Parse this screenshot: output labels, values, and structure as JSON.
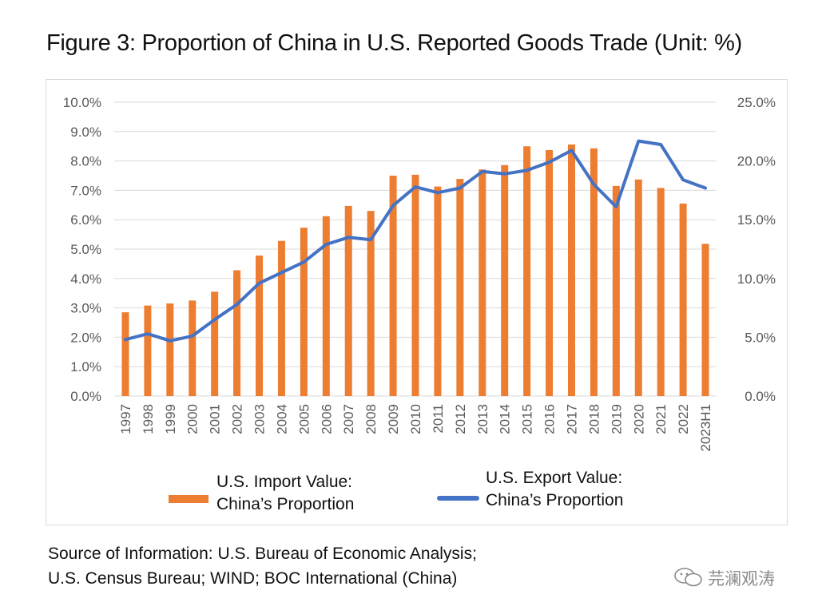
{
  "title": "Figure 3: Proportion of China in U.S. Reported Goods Trade (Unit: %)",
  "legend": {
    "import_line1": "U.S. Import Value:",
    "import_line2": "China’s Proportion",
    "export_line1": "U.S. Export Value:",
    "export_line2": "China’s Proportion"
  },
  "source": {
    "line1": "Source of Information: U.S. Bureau of Economic Analysis;",
    "line2": "U.S. Census Bureau; WIND; BOC International (China)"
  },
  "watermark": "芫澜观涛",
  "colors": {
    "bars": "#ed7d31",
    "line": "#4472c4",
    "grid": "#d9d9d9",
    "tick_text": "#595959"
  },
  "chart_data": {
    "type": "bar",
    "categories": [
      "1997",
      "1998",
      "1999",
      "2000",
      "2001",
      "2002",
      "2003",
      "2004",
      "2005",
      "2006",
      "2007",
      "2008",
      "2009",
      "2010",
      "2011",
      "2012",
      "2013",
      "2014",
      "2015",
      "2016",
      "2017",
      "2018",
      "2019",
      "2020",
      "2021",
      "2022",
      "2023H1"
    ],
    "series": [
      {
        "name": "U.S. Import Value: China’s Proportion",
        "type": "bar",
        "axis": "left",
        "values": [
          2.85,
          3.08,
          3.15,
          3.25,
          3.55,
          4.28,
          4.78,
          5.28,
          5.73,
          6.12,
          6.47,
          6.3,
          7.5,
          7.53,
          7.13,
          7.39,
          7.71,
          7.86,
          8.5,
          8.37,
          8.56,
          8.43,
          7.15,
          7.37,
          7.08,
          6.55,
          5.18
        ]
      },
      {
        "name": "U.S. Export Value: China’s Proportion",
        "type": "line",
        "axis": "right",
        "values": [
          4.8,
          5.3,
          4.7,
          5.1,
          6.5,
          7.8,
          9.6,
          10.5,
          11.4,
          12.9,
          13.5,
          13.3,
          16.2,
          17.8,
          17.3,
          17.7,
          19.1,
          18.9,
          19.2,
          19.9,
          20.9,
          18.0,
          16.1,
          21.7,
          21.4,
          18.4,
          17.7
        ]
      }
    ],
    "y_left": {
      "ylim": [
        0,
        10
      ],
      "ticks": [
        "0.0%",
        "1.0%",
        "2.0%",
        "3.0%",
        "4.0%",
        "5.0%",
        "6.0%",
        "7.0%",
        "8.0%",
        "9.0%",
        "10.0%"
      ]
    },
    "y_right": {
      "ylim": [
        0,
        25
      ],
      "ticks": [
        "0.0%",
        "5.0%",
        "10.0%",
        "15.0%",
        "20.0%",
        "25.0%"
      ]
    },
    "grid": true,
    "legend_position": "bottom"
  }
}
